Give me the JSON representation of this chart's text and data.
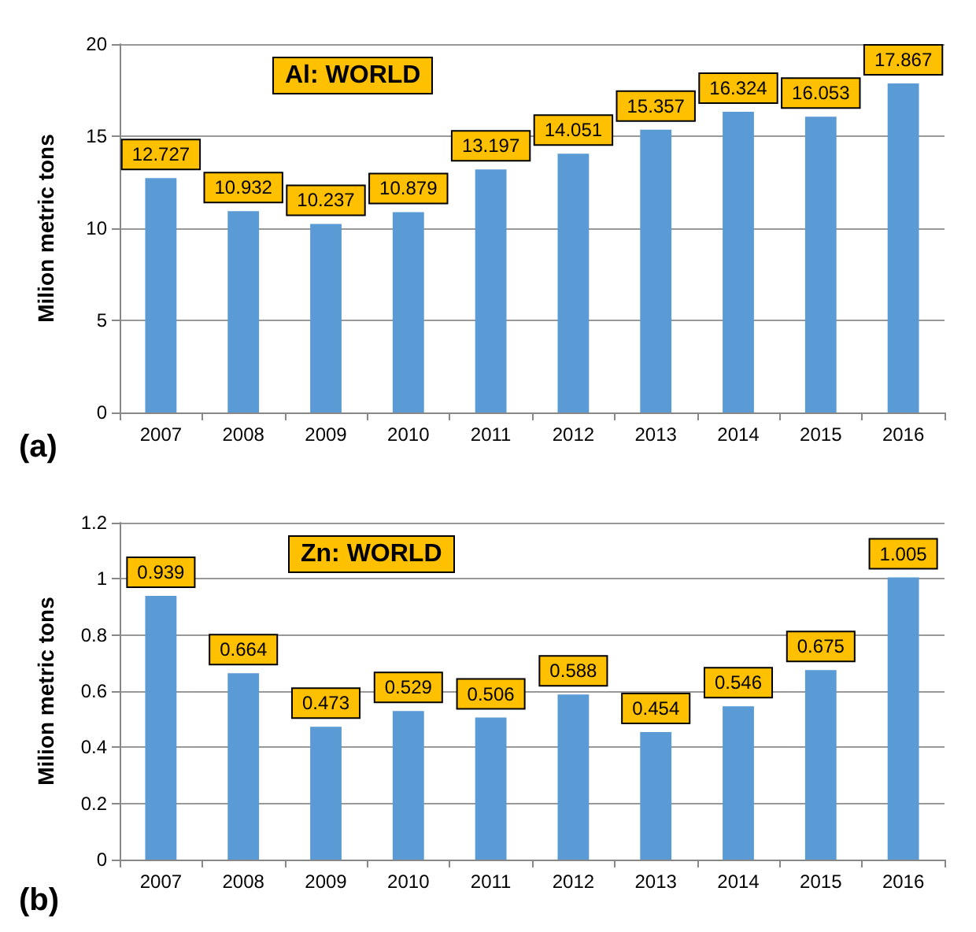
{
  "chart_data": [
    {
      "type": "bar",
      "title": "Al: WORLD",
      "ylabel": "Milion metric tons",
      "annotations": [
        "(a)"
      ],
      "categories": [
        "2007",
        "2008",
        "2009",
        "2010",
        "2011",
        "2012",
        "2013",
        "2014",
        "2015",
        "2016"
      ],
      "values": [
        12.727,
        10.932,
        10.237,
        10.879,
        13.197,
        14.051,
        15.357,
        16.324,
        16.053,
        17.867
      ],
      "color": "#5b9bd5",
      "ylim": [
        0,
        20
      ],
      "yticks": [
        0,
        5,
        10,
        15,
        20
      ],
      "grid": "y",
      "data_labels": true
    },
    {
      "type": "bar",
      "title": "Zn: WORLD",
      "ylabel": "Milion metric tons",
      "annotations": [
        "(b)"
      ],
      "categories": [
        "2007",
        "2008",
        "2009",
        "2010",
        "2011",
        "2012",
        "2013",
        "2014",
        "2015",
        "2016"
      ],
      "values": [
        0.939,
        0.664,
        0.473,
        0.529,
        0.506,
        0.588,
        0.454,
        0.546,
        0.675,
        1.005
      ],
      "color": "#5b9bd5",
      "ylim": [
        0,
        1.2
      ],
      "yticks": [
        0,
        0.2,
        0.4,
        0.6,
        0.8,
        1,
        1.2
      ],
      "grid": "y",
      "data_labels": true
    }
  ]
}
